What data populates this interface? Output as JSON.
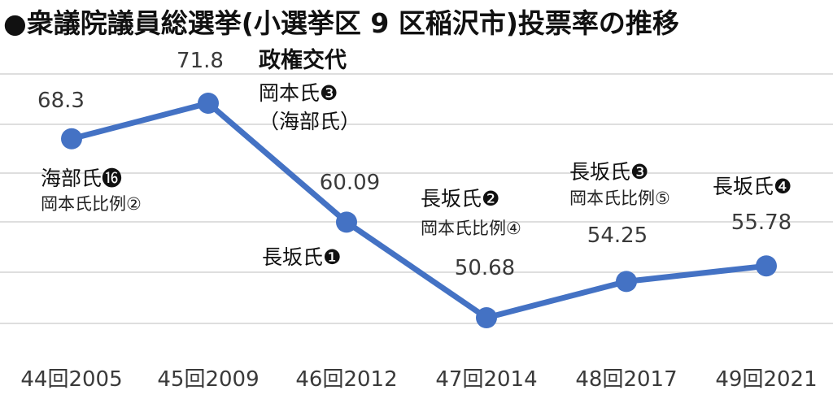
{
  "chart_data": {
    "type": "line",
    "title": "●衆議院議員総選挙(小選挙区 9 区稲沢市)投票率の推移",
    "categories": [
      "44回2005",
      "45回2009",
      "46回2012",
      "47回2014",
      "48回2017",
      "49回2021"
    ],
    "series": [
      {
        "values": [
          68.3,
          71.8,
          60.09,
          50.68,
          54.25,
          55.78
        ]
      }
    ],
    "value_labels": [
      "68.3",
      "71.8",
      "60.09",
      "50.68",
      "54.25",
      "55.78"
    ],
    "ylim": [
      48,
      78
    ],
    "grid": true,
    "color": "#4472c4",
    "annotations": [
      {
        "lines": [
          "海部氏⓰",
          "岡本氏比例②"
        ]
      },
      {
        "lines": [
          "政権交代",
          "岡本氏❸",
          "（海部氏）"
        ]
      },
      {
        "lines": [
          "長坂氏❶"
        ]
      },
      {
        "lines": [
          "長坂氏❷",
          "岡本氏比例④"
        ]
      },
      {
        "lines": [
          "長坂氏❸",
          "岡本氏比例⑤"
        ]
      },
      {
        "lines": [
          "長坂氏❹"
        ]
      }
    ]
  }
}
